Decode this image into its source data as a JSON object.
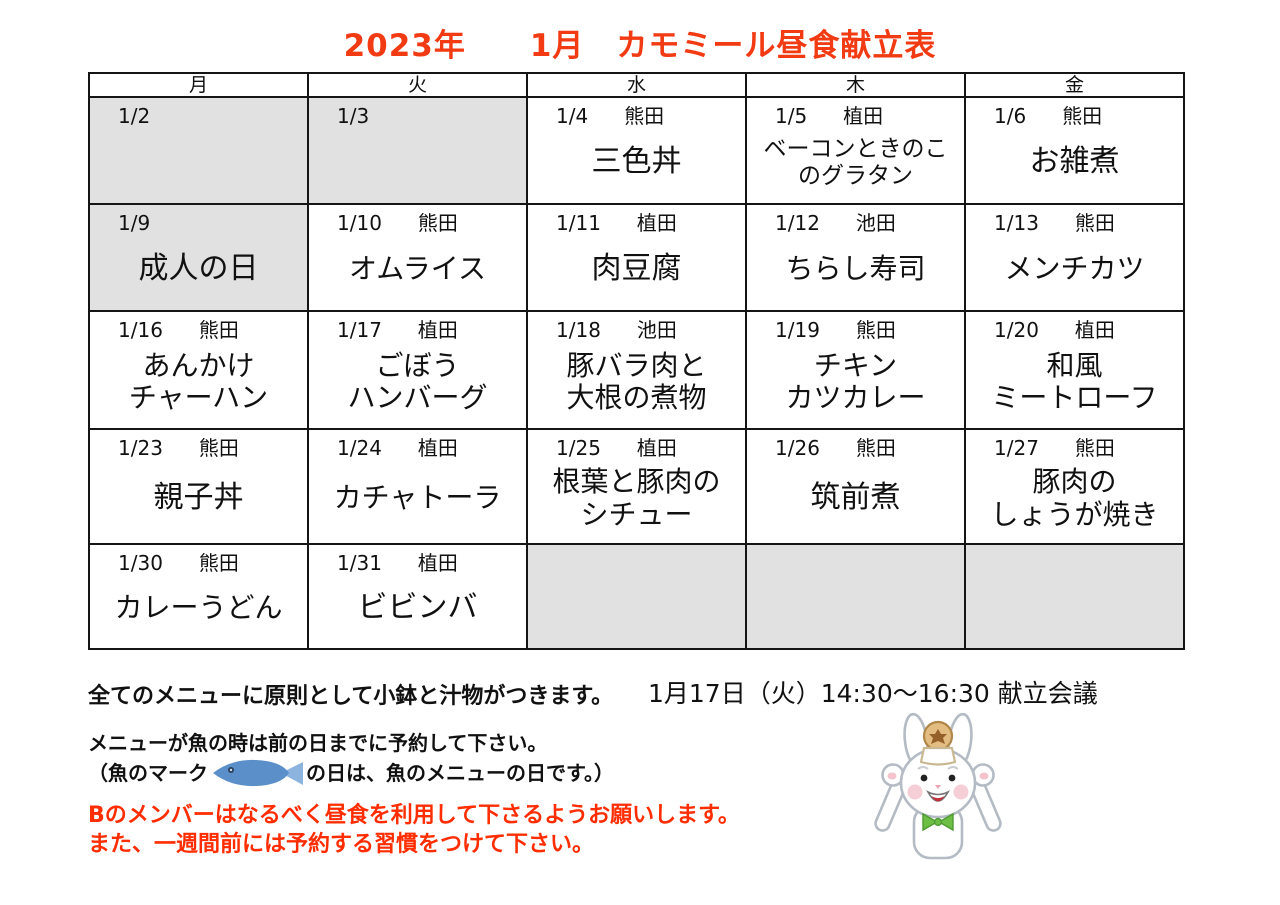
{
  "title": "2023年　　1月　カモミール昼食献立表",
  "colors": {
    "title_red": "#f23a13",
    "note_red": "#ff2d00",
    "cell_gray": "#e1e1e1",
    "border_black": "#151515",
    "fish_blue": "#5b8fc9",
    "fish_tail_blue": "#8cb4de",
    "bow_green": "#6cbf44"
  },
  "table": {
    "headers": [
      "月",
      "火",
      "水",
      "木",
      "金"
    ],
    "weeks": [
      [
        {
          "date": "1/2",
          "staff": "",
          "menu": [],
          "gray": true
        },
        {
          "date": "1/3",
          "staff": "",
          "menu": [],
          "gray": true
        },
        {
          "date": "1/4",
          "staff": "熊田",
          "menu": [
            "三色丼"
          ],
          "gray": false
        },
        {
          "date": "1/5",
          "staff": "植田",
          "menu": [
            "ベーコンときのこ",
            "のグラタン"
          ],
          "gray": false
        },
        {
          "date": "1/6",
          "staff": "熊田",
          "menu": [
            "お雑煮"
          ],
          "gray": false
        }
      ],
      [
        {
          "date": "1/9",
          "staff": "",
          "menu": [
            "成人の日"
          ],
          "gray": true
        },
        {
          "date": "1/10",
          "staff": "熊田",
          "menu": [
            "オムライス"
          ],
          "gray": false
        },
        {
          "date": "1/11",
          "staff": "植田",
          "menu": [
            "肉豆腐"
          ],
          "gray": false
        },
        {
          "date": "1/12",
          "staff": "池田",
          "menu": [
            "ちらし寿司"
          ],
          "gray": false
        },
        {
          "date": "1/13",
          "staff": "熊田",
          "menu": [
            "メンチカツ"
          ],
          "gray": false
        }
      ],
      [
        {
          "date": "1/16",
          "staff": "熊田",
          "menu": [
            "あんかけ",
            "チャーハン"
          ],
          "gray": false
        },
        {
          "date": "1/17",
          "staff": "植田",
          "menu": [
            "ごぼう",
            "ハンバーグ"
          ],
          "gray": false
        },
        {
          "date": "1/18",
          "staff": "池田",
          "menu": [
            "豚バラ肉と",
            "大根の煮物"
          ],
          "gray": false
        },
        {
          "date": "1/19",
          "staff": "熊田",
          "menu": [
            "チキン",
            "カツカレー"
          ],
          "gray": false
        },
        {
          "date": "1/20",
          "staff": "植田",
          "menu": [
            "和風",
            "ミートローフ"
          ],
          "gray": false
        }
      ],
      [
        {
          "date": "1/23",
          "staff": "熊田",
          "menu": [
            "親子丼"
          ],
          "gray": false
        },
        {
          "date": "1/24",
          "staff": "植田",
          "menu": [
            "カチャトーラ"
          ],
          "gray": false
        },
        {
          "date": "1/25",
          "staff": "植田",
          "menu": [
            "根葉と豚肉の",
            "シチュー"
          ],
          "gray": false
        },
        {
          "date": "1/26",
          "staff": "熊田",
          "menu": [
            "筑前煮"
          ],
          "gray": false
        },
        {
          "date": "1/27",
          "staff": "熊田",
          "menu": [
            "豚肉の",
            "しょうが焼き"
          ],
          "gray": false
        }
      ],
      [
        {
          "date": "1/30",
          "staff": "熊田",
          "menu": [
            "カレーうどん"
          ],
          "gray": false
        },
        {
          "date": "1/31",
          "staff": "植田",
          "menu": [
            "ビビンバ"
          ],
          "gray": false
        },
        {
          "date": "",
          "staff": "",
          "menu": [],
          "gray": true
        },
        {
          "date": "",
          "staff": "",
          "menu": [],
          "gray": true
        },
        {
          "date": "",
          "staff": "",
          "menu": [],
          "gray": true
        }
      ]
    ]
  },
  "notes": {
    "side_dish_note": "全てのメニューに原則として小鉢と汁物がつきます。",
    "meeting_info": "1月17日（火）14:30～16:30 献立会議",
    "fish_note_line1": "メニューが魚の時は前の日までに予約して下さい。",
    "fish_note_line2_before": "（魚のマーク",
    "fish_note_line2_after": "の日は、魚のメニューの日です。）",
    "red_note_line1": "Bのメンバーはなるべく昼食を利用して下さるようお願いします。",
    "red_note_line2": "また、一週間前には予約する習慣をつけて下さい。"
  },
  "icons": {
    "fish_icon": "blue-fish-mark",
    "rabbit_illustration": "white-rabbit-cheering-with-mochi-hat"
  }
}
